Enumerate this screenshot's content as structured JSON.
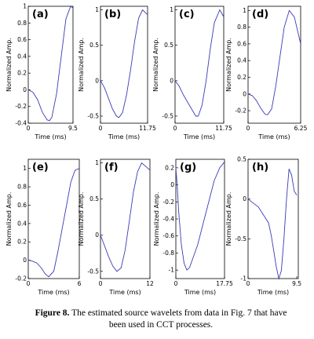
{
  "chart_data": [
    {
      "type": "line",
      "title": "(a)",
      "x_label": "Time (ms)",
      "y_label": "Normalized Amp.",
      "color": "#3a3ab8",
      "x": [
        0,
        1,
        2,
        3,
        4,
        4.5,
        5,
        6,
        7,
        8,
        9,
        9.5
      ],
      "values": [
        0,
        -0.03,
        -0.12,
        -0.27,
        -0.36,
        -0.37,
        -0.33,
        -0.05,
        0.4,
        0.85,
        1,
        0.98
      ],
      "xlim": [
        0,
        9.5
      ],
      "xticks": [
        0,
        9.5
      ],
      "ylim": [
        -0.4,
        1
      ],
      "yticks": [
        -0.4,
        -0.2,
        0,
        0.2,
        0.4,
        0.6,
        0.8,
        1
      ]
    },
    {
      "type": "line",
      "title": "(b)",
      "x_label": "Time (ms)",
      "y_label": "Normalized Amp.",
      "color": "#3a3ab8",
      "x": [
        0,
        1,
        2,
        3,
        4,
        4.6,
        5.5,
        6.5,
        7.5,
        8.5,
        9.5,
        10.5,
        11.75
      ],
      "values": [
        0,
        -0.1,
        -0.25,
        -0.4,
        -0.5,
        -0.52,
        -0.45,
        -0.2,
        0.15,
        0.55,
        0.88,
        1,
        0.93
      ],
      "xlim": [
        0,
        11.75
      ],
      "xticks": [
        0,
        11.75
      ],
      "ylim": [
        -0.6,
        1.05
      ],
      "yticks": [
        -0.5,
        0,
        0.5,
        1
      ]
    },
    {
      "type": "line",
      "title": "(c)",
      "x_label": "Time (ms)",
      "y_label": "Normalized Amp.",
      "color": "#3a3ab8",
      "x": [
        0,
        1,
        2,
        3,
        4,
        5,
        5.6,
        6.5,
        7.5,
        8.5,
        9.5,
        10.8,
        11.75
      ],
      "values": [
        0,
        -0.08,
        -0.2,
        -0.3,
        -0.4,
        -0.5,
        -0.5,
        -0.35,
        0,
        0.45,
        0.82,
        1,
        0.9
      ],
      "xlim": [
        0,
        11.75
      ],
      "xticks": [
        0,
        11.75
      ],
      "ylim": [
        -0.6,
        1.05
      ],
      "yticks": [
        -0.5,
        0,
        0.5,
        1
      ]
    },
    {
      "type": "line",
      "title": "(d)",
      "x_label": "Time (ms)",
      "y_label": "Normalized Amp.",
      "color": "#3a3ab8",
      "x": [
        0,
        0.5,
        1,
        1.5,
        2,
        2.3,
        2.8,
        3.3,
        3.8,
        4.3,
        4.9,
        5.5,
        6.25
      ],
      "values": [
        0,
        -0.02,
        -0.08,
        -0.17,
        -0.24,
        -0.25,
        -0.18,
        0.1,
        0.45,
        0.8,
        1,
        0.92,
        0.6
      ],
      "xlim": [
        0,
        6.25
      ],
      "xticks": [
        0,
        6.25
      ],
      "ylim": [
        -0.35,
        1.05
      ],
      "yticks": [
        -0.2,
        0,
        0.2,
        0.4,
        0.6,
        0.8,
        1
      ]
    },
    {
      "type": "line",
      "title": "(e)",
      "x_label": "Time (ms)",
      "y_label": "Normalized Amp.",
      "color": "#3a3ab8",
      "x": [
        0,
        0.5,
        1,
        1.5,
        2,
        2.4,
        3,
        3.5,
        4,
        4.5,
        5,
        5.5,
        6
      ],
      "values": [
        0,
        -0.01,
        -0.03,
        -0.08,
        -0.15,
        -0.18,
        -0.12,
        0.1,
        0.35,
        0.6,
        0.85,
        0.98,
        1
      ],
      "xlim": [
        0,
        6
      ],
      "xticks": [
        0,
        6
      ],
      "ylim": [
        -0.2,
        1.1
      ],
      "yticks": [
        -0.2,
        0,
        0.2,
        0.4,
        0.6,
        0.8,
        1
      ]
    },
    {
      "type": "line",
      "title": "(f)",
      "x_label": "Time (ms)",
      "y_label": "Normalized Amp.",
      "color": "#3a3ab8",
      "x": [
        0,
        1,
        2,
        3,
        4,
        5,
        6,
        7,
        8,
        9,
        10,
        11,
        12
      ],
      "values": [
        0,
        -0.15,
        -0.3,
        -0.43,
        -0.5,
        -0.45,
        -0.2,
        0.2,
        0.6,
        0.88,
        1,
        0.95,
        0.9
      ],
      "xlim": [
        0,
        12
      ],
      "xticks": [
        0,
        12
      ],
      "ylim": [
        -0.6,
        1.05
      ],
      "yticks": [
        -0.5,
        0,
        0.5,
        1
      ]
    },
    {
      "type": "line",
      "title": "(g)",
      "x_label": "Time (ms)",
      "y_label": "Normalized Amp.",
      "color": "#3a3ab8",
      "x": [
        0,
        0.5,
        1,
        2,
        3,
        4,
        5,
        6,
        8,
        10,
        12,
        14,
        16,
        17.75
      ],
      "values": [
        0.2,
        0,
        -0.3,
        -0.7,
        -0.92,
        -1,
        -0.97,
        -0.88,
        -0.7,
        -0.45,
        -0.2,
        0.05,
        0.2,
        0.27
      ],
      "xlim": [
        0,
        17.75
      ],
      "xticks": [
        0,
        17.75
      ],
      "ylim": [
        -1.1,
        0.3
      ],
      "yticks": [
        -1,
        -0.8,
        -0.6,
        -0.4,
        -0.2,
        0,
        0.2
      ]
    },
    {
      "type": "line",
      "title": "(h)",
      "x_label": "Time (ms)",
      "y_label": "Normalized Amp.",
      "color": "#3a3ab8",
      "x": [
        0,
        1,
        2,
        3,
        4,
        4.5,
        5,
        5.5,
        6,
        6.5,
        7,
        7.5,
        8,
        8.5,
        9,
        9.5
      ],
      "values": [
        0,
        -0.05,
        -0.1,
        -0.2,
        -0.3,
        -0.45,
        -0.65,
        -0.85,
        -1,
        -0.9,
        -0.5,
        0,
        0.38,
        0.3,
        0.1,
        0.05
      ],
      "xlim": [
        0,
        9.8
      ],
      "xticks": [
        0,
        9.5
      ],
      "ylim": [
        -1,
        0.5
      ],
      "yticks": [
        -1,
        -0.5,
        0,
        0.5
      ]
    }
  ],
  "caption": {
    "label": "Figure 8.",
    "text": "The estimated source wavelets from data in Fig. 7 that have been used in CCT processes."
  }
}
